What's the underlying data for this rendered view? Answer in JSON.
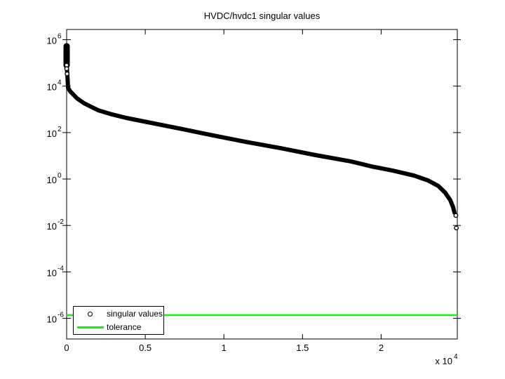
{
  "chart_data": {
    "type": "scatter",
    "title": "HVDC/hvdc1 singular values",
    "xlabel": "",
    "ylabel": "",
    "grid": false,
    "x_axis": {
      "xlim": [
        0,
        24842
      ],
      "ticks": [
        0,
        5000,
        10000,
        15000,
        20000
      ],
      "tick_labels": [
        "0",
        "0.5",
        "1",
        "1.5",
        "2"
      ],
      "multiplier": {
        "prefix": "x 10",
        "exponent": "4"
      }
    },
    "y_axis": {
      "scale": "log",
      "base": "10",
      "tick_exponents": [
        6,
        4,
        2,
        0,
        -2,
        -4,
        -6
      ],
      "ylim_log10": [
        -6.89,
        6.44
      ]
    },
    "legend": {
      "position": "southwest",
      "entries": [
        {
          "label": "singular values",
          "marker": "circle",
          "color": "#000000"
        },
        {
          "label": "tolerance",
          "marker": "line",
          "color": "#00ff00"
        }
      ]
    },
    "series": [
      {
        "name": "singular values",
        "color": "#000000",
        "marker": "o",
        "points_log10": [
          [
            0,
            5.72
          ],
          [
            0,
            4.92
          ],
          [
            45,
            4.53
          ],
          [
            89,
            3.93
          ],
          [
            223,
            3.78
          ],
          [
            669,
            3.47
          ],
          [
            1115,
            3.26
          ],
          [
            2007,
            2.96
          ],
          [
            2899,
            2.78
          ],
          [
            3791,
            2.63
          ],
          [
            4683,
            2.51
          ],
          [
            6913,
            2.21
          ],
          [
            9143,
            1.9
          ],
          [
            11373,
            1.6
          ],
          [
            13603,
            1.33
          ],
          [
            15833,
            1.03
          ],
          [
            18063,
            0.76
          ],
          [
            19401,
            0.54
          ],
          [
            20739,
            0.36
          ],
          [
            22077,
            0.15
          ],
          [
            22969,
            -0.06
          ],
          [
            23638,
            -0.3
          ],
          [
            24084,
            -0.6
          ],
          [
            24396,
            -0.91
          ],
          [
            24575,
            -1.21
          ],
          [
            24664,
            -1.45
          ]
        ],
        "isolated_markers_log10": [
          [
            0,
            4.9
          ],
          [
            0,
            4.75
          ],
          [
            30,
            4.53
          ],
          [
            24750,
            -1.57
          ],
          [
            24780,
            -2.11
          ]
        ],
        "start_cluster_log10": {
          "x": 0,
          "from": 5.72,
          "to": 4.9
        }
      },
      {
        "name": "tolerance",
        "color": "#00ff00",
        "value_log10": -5.86,
        "value": 1.4e-06
      }
    ]
  }
}
